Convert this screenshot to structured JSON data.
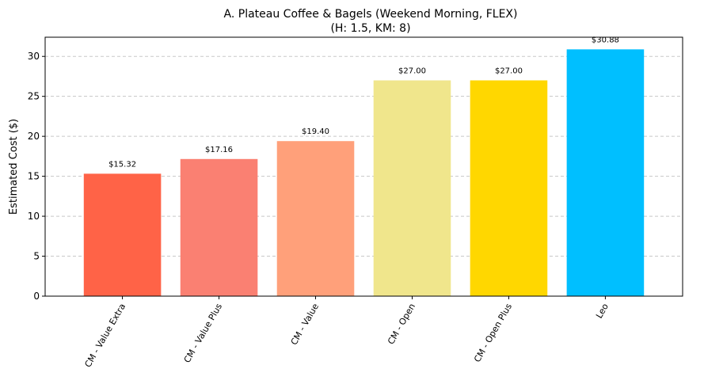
{
  "chart_data": {
    "type": "bar",
    "title": "A. Plateau Coffee & Bagels (Weekend Morning, FLEX)",
    "subtitle": "(H: 1.5, KM: 8)",
    "xlabel": "",
    "ylabel": "Estimated Cost ($)",
    "ylim": [
      0,
      32.4
    ],
    "yticks": [
      0,
      5,
      10,
      15,
      20,
      25,
      30
    ],
    "grid": "y-dashed",
    "categories": [
      "CM - Value Extra",
      "CM - Value Plus",
      "CM - Value",
      "CM - Open",
      "CM - Open Plus",
      "Leo"
    ],
    "values": [
      15.32,
      17.16,
      19.4,
      27.0,
      27.0,
      30.88
    ],
    "data_labels": [
      "$15.32",
      "$17.16",
      "$19.40",
      "$27.00",
      "$27.00",
      "$30.88"
    ],
    "colors": [
      "#ff6347",
      "#fa8072",
      "#ffa07a",
      "#f0e68c",
      "#ffd700",
      "#00bfff"
    ]
  }
}
